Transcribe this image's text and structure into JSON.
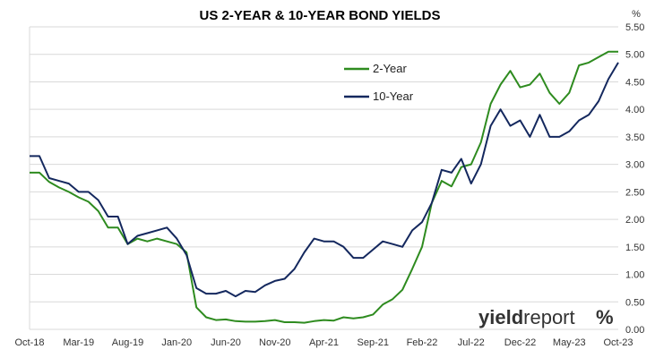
{
  "chart_data": {
    "type": "line",
    "title": "US 2-YEAR & 10-YEAR BOND YIELDS",
    "y_unit": "%",
    "ylim": [
      0,
      5.5
    ],
    "y_ticks": [
      "0.00",
      "0.50",
      "1.00",
      "1.50",
      "2.00",
      "2.50",
      "3.00",
      "3.50",
      "4.00",
      "4.50",
      "5.00",
      "5.50"
    ],
    "x_ticks": [
      "Oct-18",
      "Mar-19",
      "Aug-19",
      "Jan-20",
      "Jun-20",
      "Nov-20",
      "Apr-21",
      "Sep-21",
      "Feb-22",
      "Jul-22",
      "Dec-22",
      "May-23",
      "Oct-23"
    ],
    "grid": "horizontal",
    "legend_position": "top-center",
    "colors": {
      "2-Year": "#2e8b1f",
      "10-Year": "#14285e",
      "logo_accent": "#d9342b",
      "logo_green": "#3aa83a"
    },
    "x_months": [
      "2018-10",
      "2018-11",
      "2018-12",
      "2019-01",
      "2019-02",
      "2019-03",
      "2019-04",
      "2019-05",
      "2019-06",
      "2019-07",
      "2019-08",
      "2019-09",
      "2019-10",
      "2019-11",
      "2019-12",
      "2020-01",
      "2020-02",
      "2020-03",
      "2020-04",
      "2020-05",
      "2020-06",
      "2020-07",
      "2020-08",
      "2020-09",
      "2020-10",
      "2020-11",
      "2020-12",
      "2021-01",
      "2021-02",
      "2021-03",
      "2021-04",
      "2021-05",
      "2021-06",
      "2021-07",
      "2021-08",
      "2021-09",
      "2021-10",
      "2021-11",
      "2021-12",
      "2022-01",
      "2022-02",
      "2022-03",
      "2022-04",
      "2022-05",
      "2022-06",
      "2022-07",
      "2022-08",
      "2022-09",
      "2022-10",
      "2022-11",
      "2022-12",
      "2023-01",
      "2023-02",
      "2023-03",
      "2023-04",
      "2023-05",
      "2023-06",
      "2023-07",
      "2023-08",
      "2023-09",
      "2023-10"
    ],
    "series": [
      {
        "name": "2-Year",
        "values": [
          2.85,
          2.85,
          2.68,
          2.58,
          2.5,
          2.4,
          2.32,
          2.15,
          1.85,
          1.85,
          1.55,
          1.65,
          1.6,
          1.65,
          1.6,
          1.55,
          1.4,
          0.4,
          0.22,
          0.17,
          0.18,
          0.15,
          0.14,
          0.14,
          0.15,
          0.17,
          0.13,
          0.13,
          0.12,
          0.15,
          0.17,
          0.16,
          0.22,
          0.2,
          0.22,
          0.27,
          0.45,
          0.55,
          0.72,
          1.1,
          1.5,
          2.3,
          2.7,
          2.6,
          2.95,
          3.0,
          3.4,
          4.1,
          4.45,
          4.7,
          4.4,
          4.45,
          4.65,
          4.3,
          4.1,
          4.3,
          4.8,
          4.85,
          4.95,
          5.05,
          5.05
        ]
      },
      {
        "name": "10-Year",
        "values": [
          3.15,
          3.15,
          2.75,
          2.7,
          2.65,
          2.5,
          2.5,
          2.35,
          2.05,
          2.05,
          1.55,
          1.7,
          1.75,
          1.8,
          1.85,
          1.65,
          1.35,
          0.75,
          0.65,
          0.65,
          0.7,
          0.6,
          0.7,
          0.68,
          0.8,
          0.88,
          0.92,
          1.1,
          1.4,
          1.65,
          1.6,
          1.6,
          1.5,
          1.3,
          1.3,
          1.45,
          1.6,
          1.55,
          1.5,
          1.8,
          1.95,
          2.3,
          2.9,
          2.85,
          3.1,
          2.65,
          3.0,
          3.7,
          4.0,
          3.7,
          3.8,
          3.5,
          3.9,
          3.5,
          3.5,
          3.6,
          3.8,
          3.9,
          4.15,
          4.55,
          4.85
        ]
      }
    ],
    "logo": {
      "text": "yieldreport",
      "symbol": "%"
    }
  }
}
